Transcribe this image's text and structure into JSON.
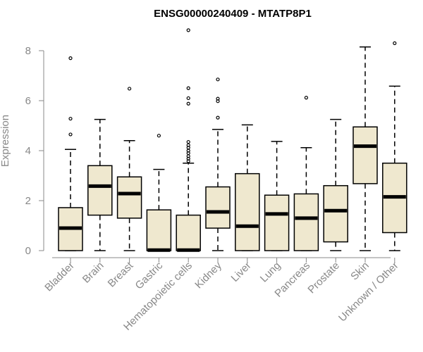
{
  "chart_data": {
    "type": "boxplot",
    "title": "ENSG00000240409 - MTATP8P1",
    "xlabel": "",
    "ylabel": "Expression",
    "ylim": [
      0,
      8.8
    ],
    "yticks": [
      0,
      2,
      4,
      6,
      8
    ],
    "box_fill": "#efe8cf",
    "categories": [
      "Bladder",
      "Brain",
      "Breast",
      "Gastric",
      "Hematopoietic cells",
      "Kidney",
      "Liver",
      "Lung",
      "Pancreas",
      "Prostate",
      "Skin",
      "Unknown / Other"
    ],
    "series": [
      {
        "name": "Bladder",
        "min": 0,
        "q1": 0,
        "median": 0.9,
        "q3": 1.72,
        "max": 4.05,
        "outliers": [
          4.65,
          5.28,
          7.7
        ]
      },
      {
        "name": "Brain",
        "min": 0,
        "q1": 1.42,
        "median": 2.58,
        "q3": 3.4,
        "max": 5.25,
        "outliers": []
      },
      {
        "name": "Breast",
        "min": 0,
        "q1": 1.3,
        "median": 2.28,
        "q3": 2.95,
        "max": 4.4,
        "outliers": [
          6.48
        ]
      },
      {
        "name": "Gastric",
        "min": 0,
        "q1": 0,
        "median": 0.02,
        "q3": 1.63,
        "max": 3.25,
        "outliers": [
          4.6
        ]
      },
      {
        "name": "Hematopoietic cells",
        "min": 0,
        "q1": 0,
        "median": 0.02,
        "q3": 1.42,
        "max": 3.5,
        "outliers": [
          3.58,
          3.68,
          3.78,
          3.9,
          4.0,
          4.12,
          4.22,
          4.35,
          5.88,
          6.1,
          6.5,
          8.82
        ]
      },
      {
        "name": "Kidney",
        "min": 0,
        "q1": 0.9,
        "median": 1.55,
        "q3": 2.55,
        "max": 4.85,
        "outliers": [
          5.32,
          5.98,
          6.08,
          6.85
        ]
      },
      {
        "name": "Liver",
        "min": 0,
        "q1": 0,
        "median": 0.98,
        "q3": 3.08,
        "max": 5.03,
        "outliers": []
      },
      {
        "name": "Lung",
        "min": 0,
        "q1": 0,
        "median": 1.47,
        "q3": 2.22,
        "max": 4.37,
        "outliers": []
      },
      {
        "name": "Pancreas",
        "min": 0,
        "q1": 0,
        "median": 1.3,
        "q3": 2.27,
        "max": 4.12,
        "outliers": [
          6.12
        ]
      },
      {
        "name": "Prostate",
        "min": 0,
        "q1": 0.35,
        "median": 1.6,
        "q3": 2.6,
        "max": 5.25,
        "outliers": []
      },
      {
        "name": "Skin",
        "min": 0,
        "q1": 2.68,
        "median": 4.18,
        "q3": 4.95,
        "max": 8.15,
        "outliers": []
      },
      {
        "name": "Unknown / Other",
        "min": 0,
        "q1": 0.72,
        "median": 2.15,
        "q3": 3.5,
        "max": 6.58,
        "outliers": [
          8.3
        ]
      }
    ]
  }
}
